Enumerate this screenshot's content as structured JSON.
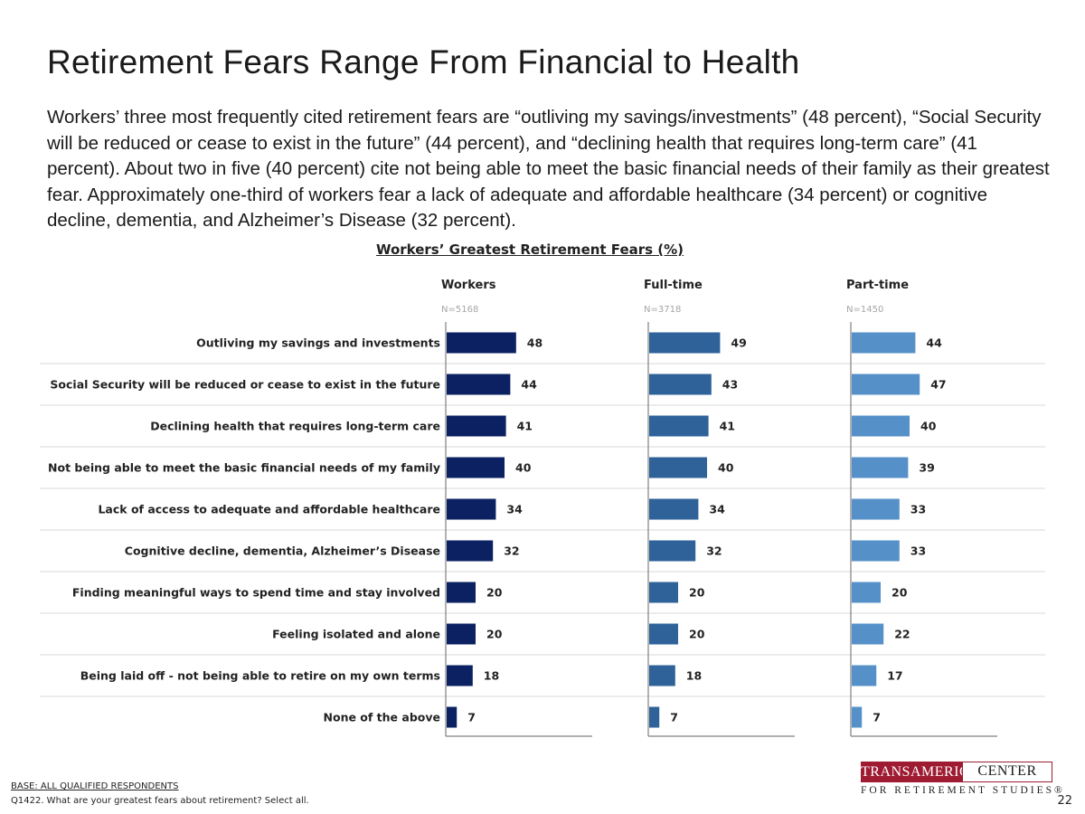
{
  "page": {
    "title": "Retirement Fears Range From Financial to Health",
    "intro": "Workers’ three most frequently cited retirement fears are “outliving my savings/investments” (48 percent), “Social Security will be reduced or cease to exist in the future” (44 percent), and “declining health that requires long-term care” (41 percent). About two in five (40 percent) cite not being able to meet the basic financial needs of their family as their greatest fear. Approximately one-third of workers fear a lack of adequate and affordable healthcare (34 percent) or cognitive decline, dementia, and Alzheimer’s Disease (32 percent).",
    "base_label": "BASE: ALL QUALIFIED RESPONDENTS",
    "question": "Q1422. What are your greatest fears about retirement? Select all.",
    "page_number": "22"
  },
  "logo": {
    "left": "TRANSAMERICA",
    "right": "CENTER",
    "bottom": "FOR RETIREMENT STUDIES®"
  },
  "chart_data": {
    "type": "bar",
    "orientation": "horizontal",
    "title": "Workers’ Greatest Retirement Fears (%)",
    "categories": [
      "Outliving my savings and investments",
      "Social Security will be reduced or cease to exist in the future",
      "Declining health that requires long-term care",
      "Not being able to meet the basic financial needs of my family",
      "Lack of access to adequate and affordable healthcare",
      "Cognitive decline, dementia, Alzheimer’s Disease",
      "Finding meaningful ways to spend time and stay involved",
      "Feeling isolated and alone",
      "Being laid off - not being able to retire on my own terms",
      "None of the above"
    ],
    "series": [
      {
        "name": "Workers",
        "n": "N=5168",
        "color": "#0b2161",
        "values": [
          48,
          44,
          41,
          40,
          34,
          32,
          20,
          20,
          18,
          7
        ]
      },
      {
        "name": "Full-time",
        "n": "N=3718",
        "color": "#2e6299",
        "values": [
          49,
          43,
          41,
          40,
          34,
          32,
          20,
          20,
          18,
          7
        ]
      },
      {
        "name": "Part-time",
        "n": "N=1450",
        "color": "#5591c8",
        "values": [
          44,
          47,
          40,
          39,
          33,
          33,
          20,
          22,
          17,
          7
        ]
      }
    ],
    "xlim": [
      0,
      100
    ],
    "grid": false,
    "data_labels": true
  }
}
